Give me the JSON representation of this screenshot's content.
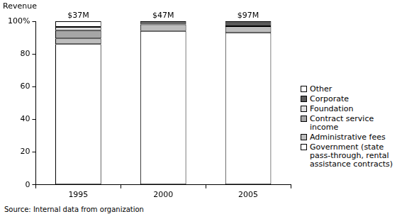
{
  "chart_data": {
    "type": "bar",
    "stacked": true,
    "grid": false,
    "legend": "right",
    "y_label": "Revenue",
    "source": "Source: Internal data from organization",
    "categories": [
      "1995",
      "2000",
      "2005"
    ],
    "series": [
      {
        "name": "Government (state pass-through, rental assistance contracts)",
        "color": "#ffffff",
        "values": [
          86,
          94,
          93
        ]
      },
      {
        "name": "Administrative fees",
        "color": "#bdbdbd",
        "values": [
          3.5,
          4,
          4
        ]
      },
      {
        "name": "Contract service income",
        "color": "#a6a6a6",
        "values": [
          5,
          0,
          0
        ]
      },
      {
        "name": "Foundation",
        "color": "#dedede",
        "values": [
          2,
          1,
          0
        ]
      },
      {
        "name": "Corporate",
        "color": "#5a5a5a",
        "values": [
          0,
          0,
          3
        ]
      },
      {
        "name": "Other",
        "color": "#ffffff",
        "values": [
          3.5,
          1,
          0
        ]
      }
    ],
    "ylim": [
      0,
      100
    ],
    "yticks": [
      0,
      20,
      40,
      60,
      80,
      {
        "value": 100,
        "label": "100%"
      }
    ],
    "annotations": [
      {
        "x": "1995",
        "text": "$37M"
      },
      {
        "x": "2000",
        "text": "$47M"
      },
      {
        "x": "2005",
        "text": "$97M"
      }
    ]
  }
}
